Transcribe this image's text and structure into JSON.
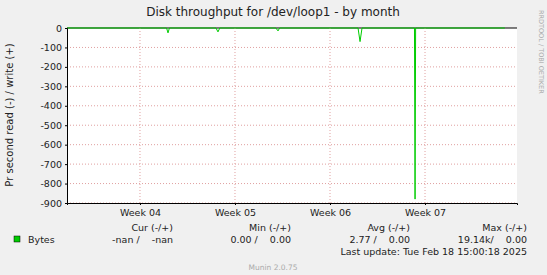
{
  "chart_data": {
    "type": "line",
    "title": "Disk throughput for /dev/loop1 - by month",
    "y_label": "Pr second read (-) / write (+)",
    "x": [
      3.232,
      4.28,
      4.295,
      4.31,
      4.8,
      4.821,
      4.84,
      5.43,
      5.453,
      5.47,
      6.295,
      6.316,
      6.337,
      6.889,
      6.895,
      6.901,
      7.84
    ],
    "series": [
      {
        "name": "Bytes",
        "color": "#00cc00",
        "values": [
          0,
          0,
          -25,
          0,
          0,
          -20,
          0,
          0,
          -15,
          0,
          0,
          -70,
          0,
          0,
          -880,
          0,
          0
        ]
      }
    ],
    "xlim": [
      3.232,
      7.968
    ],
    "xticks": [
      {
        "value": 4,
        "label": "Week 04"
      },
      {
        "value": 5,
        "label": "Week 05"
      },
      {
        "value": 6,
        "label": "Week 06"
      },
      {
        "value": 7,
        "label": "Week 07"
      }
    ],
    "ylim": [
      -900,
      0
    ],
    "yticks": [
      -900,
      -800,
      -700,
      -600,
      -500,
      -400,
      -300,
      -200,
      -100,
      0
    ],
    "grid": true,
    "stats": {
      "headers": [
        "Cur (-/+)",
        "Min (-/+)",
        "Avg (-/+)",
        "Max (-/+)"
      ],
      "values": [
        "-nan /    -nan",
        "0.00 /    0.00",
        "2.77 /    0.00",
        "19.14k/    0.00"
      ]
    },
    "annotations": [
      "Last update: Tue Feb 18 15:00:18 2025",
      "Munin 2.0.75",
      "RRDTOOL / TOBI OETIKER"
    ]
  }
}
